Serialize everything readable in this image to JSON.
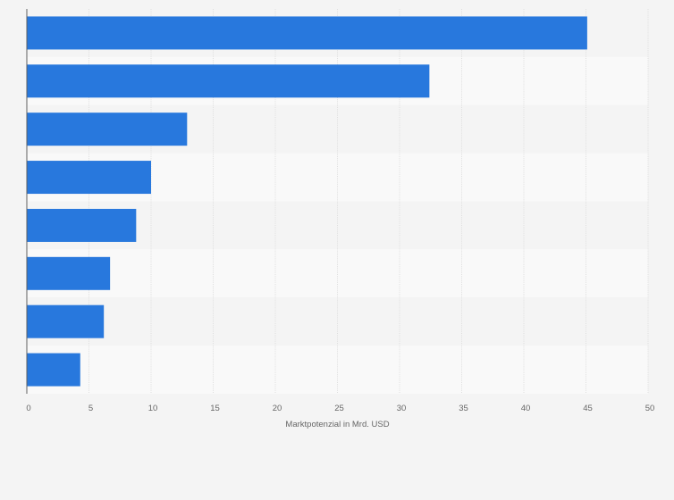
{
  "colors": {
    "background": "#f4f4f4",
    "band_light": "#f9f9f9",
    "band_dark": "#f4f4f4",
    "bar": "#2878dd",
    "grid": "#dedede",
    "axis": "#5f5f5f",
    "text": "#666666"
  },
  "chart_data": {
    "type": "bar",
    "orientation": "horizontal",
    "categories": [
      "",
      "",
      "",
      "",
      "",
      "",
      "",
      ""
    ],
    "values": [
      45.1,
      32.4,
      12.9,
      10.0,
      8.8,
      6.7,
      6.2,
      4.3
    ],
    "title": "",
    "xlabel": "Marktpotenzial in Mrd. USD",
    "ylabel": "",
    "xlim": [
      0,
      50
    ],
    "xticks": [
      "0",
      "5",
      "10",
      "15",
      "20",
      "25",
      "30",
      "35",
      "40",
      "45",
      "50"
    ],
    "grid": true,
    "legend": "none"
  }
}
